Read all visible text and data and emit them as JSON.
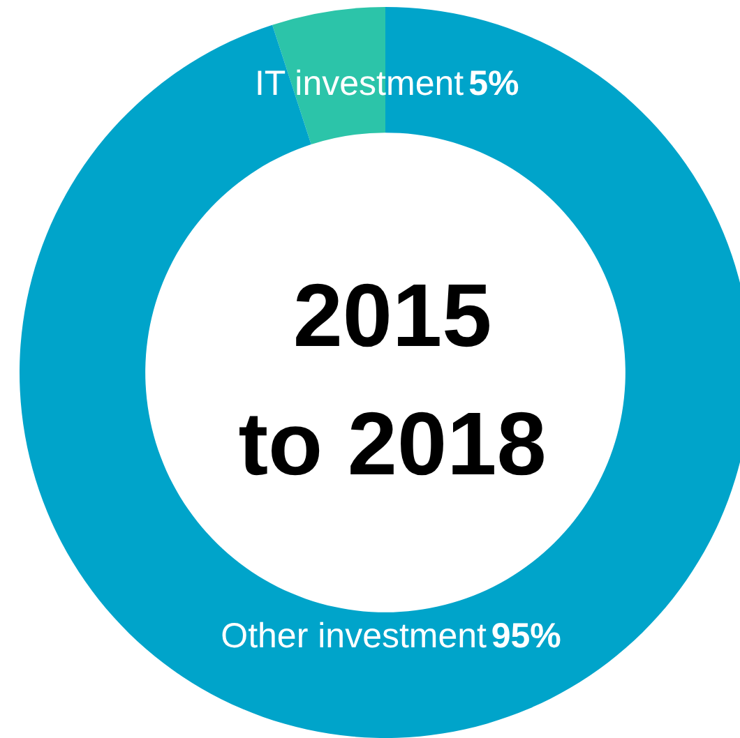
{
  "chart_data": {
    "type": "donut",
    "title": "2015\nto 2018",
    "categories": [
      "IT investment",
      "Other investment"
    ],
    "values": [
      5,
      95
    ],
    "colors": [
      "#2cc4a9",
      "#00a4ca"
    ],
    "value_labels": [
      "5%",
      "95%"
    ]
  }
}
